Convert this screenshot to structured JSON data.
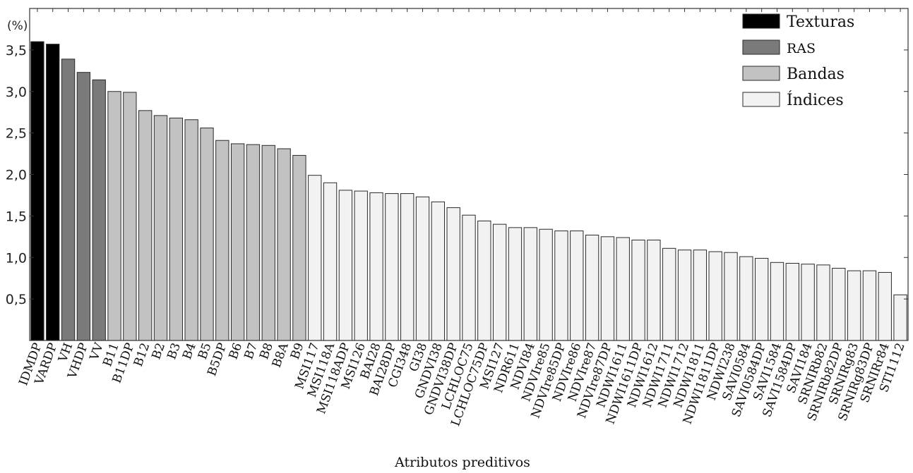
{
  "chart_data": {
    "type": "bar",
    "title": "",
    "xlabel": "Atributos preditivos",
    "ylabel": "(%)",
    "ylim": [
      0,
      4.0
    ],
    "yticks": [
      "0,5",
      "1,0",
      "1,5",
      "2,0",
      "2,5",
      "3,0",
      "3,5"
    ],
    "ytick_values": [
      0.5,
      1.0,
      1.5,
      2.0,
      2.5,
      3.0,
      3.5
    ],
    "grid": false,
    "legend_position": "top-right",
    "groups": [
      {
        "name": "Texturas",
        "color": "#000000"
      },
      {
        "name": "RAS",
        "color": "#7a7a7a"
      },
      {
        "name": "Bandas",
        "color": "#c2c2c2"
      },
      {
        "name": "Índices",
        "color": "#f2f2f2"
      }
    ],
    "categories": [
      "IDMDP",
      "VARDP",
      "VH",
      "VHDP",
      "VV",
      "B11",
      "B11DP",
      "B12",
      "B2",
      "B3",
      "B4",
      "B5",
      "B5DP",
      "B6",
      "B7",
      "B8",
      "B8A",
      "B9",
      "MSI117",
      "MSI118A",
      "MSI118ADP",
      "MSI126",
      "BAI28",
      "BAI28DP",
      "CGI348",
      "GI38",
      "GNDVI38",
      "GNDVI38DP",
      "LCHLOC75",
      "LCHLOC75DP",
      "MSI127",
      "NDR611",
      "NDVI84",
      "NDVIre85",
      "NDVIre85DP",
      "NDVIre86",
      "NDVIre87",
      "NDVIre87DP",
      "NDWI1611",
      "NDWI1611DP",
      "NDWI1612",
      "NDWI1711",
      "NDWI1712",
      "NDWI1811",
      "NDWI1811DP",
      "NDWI238",
      "SAVI0584",
      "SAVI0584DP",
      "SAVI1584",
      "SAVI1584DP",
      "SAVI184",
      "SRNIRb82",
      "SRNIRb82DP",
      "SRNIRg83",
      "SRNIRg83DP",
      "SRNIRr84",
      "STI1112"
    ],
    "values": [
      3.6,
      3.57,
      3.39,
      3.23,
      3.14,
      3.0,
      2.99,
      2.77,
      2.71,
      2.68,
      2.66,
      2.56,
      2.41,
      2.37,
      2.36,
      2.35,
      2.31,
      2.23,
      1.99,
      1.9,
      1.81,
      1.8,
      1.78,
      1.77,
      1.77,
      1.73,
      1.67,
      1.6,
      1.51,
      1.44,
      1.4,
      1.36,
      1.36,
      1.34,
      1.32,
      1.32,
      1.27,
      1.25,
      1.24,
      1.21,
      1.21,
      1.11,
      1.09,
      1.09,
      1.07,
      1.06,
      1.01,
      0.99,
      0.94,
      0.93,
      0.92,
      0.91,
      0.87,
      0.84,
      0.84,
      0.82,
      0.55
    ],
    "group_index": [
      0,
      0,
      1,
      1,
      1,
      2,
      2,
      2,
      2,
      2,
      2,
      2,
      2,
      2,
      2,
      2,
      2,
      2,
      3,
      3,
      3,
      3,
      3,
      3,
      3,
      3,
      3,
      3,
      3,
      3,
      3,
      3,
      3,
      3,
      3,
      3,
      3,
      3,
      3,
      3,
      3,
      3,
      3,
      3,
      3,
      3,
      3,
      3,
      3,
      3,
      3,
      3,
      3,
      3,
      3,
      3,
      3
    ]
  }
}
